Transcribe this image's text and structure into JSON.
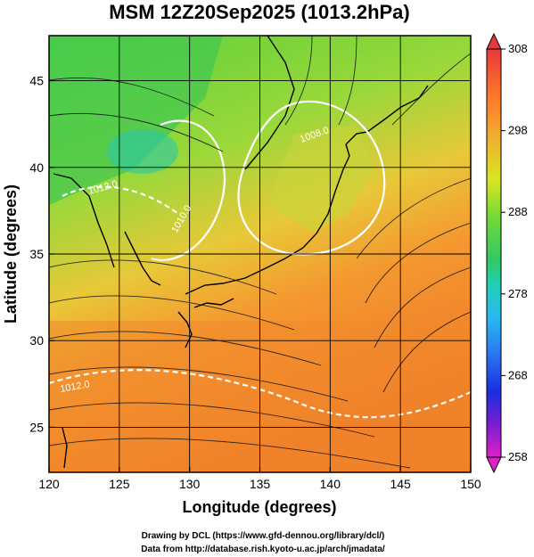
{
  "title": "MSM 12Z20Sep2025 (1013.2hPa)",
  "xlabel": "Longitude (degrees)",
  "ylabel": "Latitude  (degrees)",
  "x_ticks": [
    "120",
    "125",
    "130",
    "135",
    "140",
    "145",
    "150"
  ],
  "y_ticks": [
    "25",
    "30",
    "35",
    "40",
    "45"
  ],
  "colorbar_ticks": [
    "308",
    "298",
    "288",
    "278",
    "268",
    "258"
  ],
  "contour_labels": [
    "1008.0",
    "1010.0",
    "1012.0",
    "1012.0"
  ],
  "credits": {
    "line1": "Drawing by DCL (https://www.gfd-dennou.org/library/dcl/)",
    "line2": "Data from http://database.rish.kyoto-u.ac.jp/arch/jmadata/"
  },
  "map": {
    "lon_range": [
      120,
      150
    ],
    "lat_range": [
      22.4,
      47.6
    ],
    "field": "temperature (K)",
    "colorbar_range": [
      258,
      308
    ],
    "grid": true
  }
}
